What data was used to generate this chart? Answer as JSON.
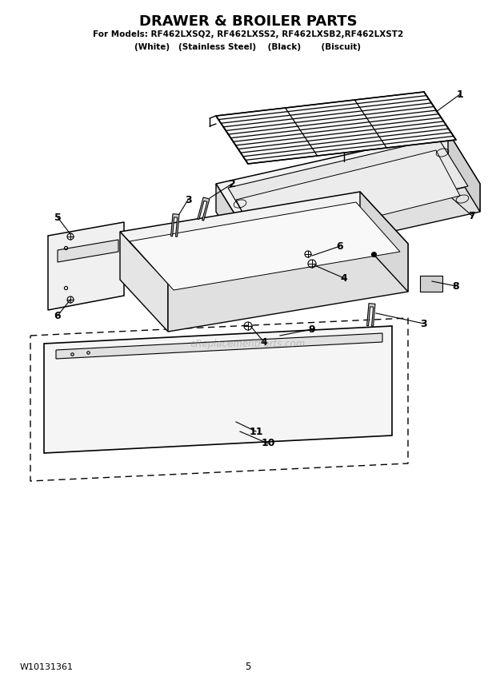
{
  "title": "DRAWER & BROILER PARTS",
  "subtitle1": "For Models: RF462LXSQ2, RF462LXSS2, RF462LXSB2,RF462LXST2",
  "subtitle2": "(White)   (Stainless Steel)    (Black)       (Biscuit)",
  "footer_left": "W10131361",
  "footer_center": "5",
  "bg_color": "#ffffff",
  "watermark": "eReplacementParts.com"
}
